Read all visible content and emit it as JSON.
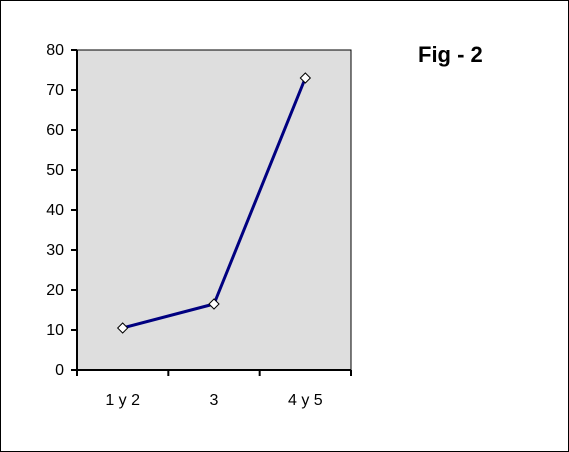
{
  "chart_data": {
    "type": "line",
    "title": "Fig - 2",
    "xlabel": "",
    "ylabel": "",
    "categories": [
      "1 y 2",
      "3",
      "4 y 5"
    ],
    "series": [
      {
        "values": [
          10.5,
          16.5,
          73
        ]
      }
    ],
    "ylim": [
      0,
      80
    ],
    "yticks": [
      0,
      10,
      20,
      30,
      40,
      50,
      60,
      70,
      80
    ],
    "grid": false,
    "legend": "none",
    "colors": {
      "plot_background": "#dedede",
      "line": "#000080",
      "marker_fill": "#ffffff"
    }
  }
}
